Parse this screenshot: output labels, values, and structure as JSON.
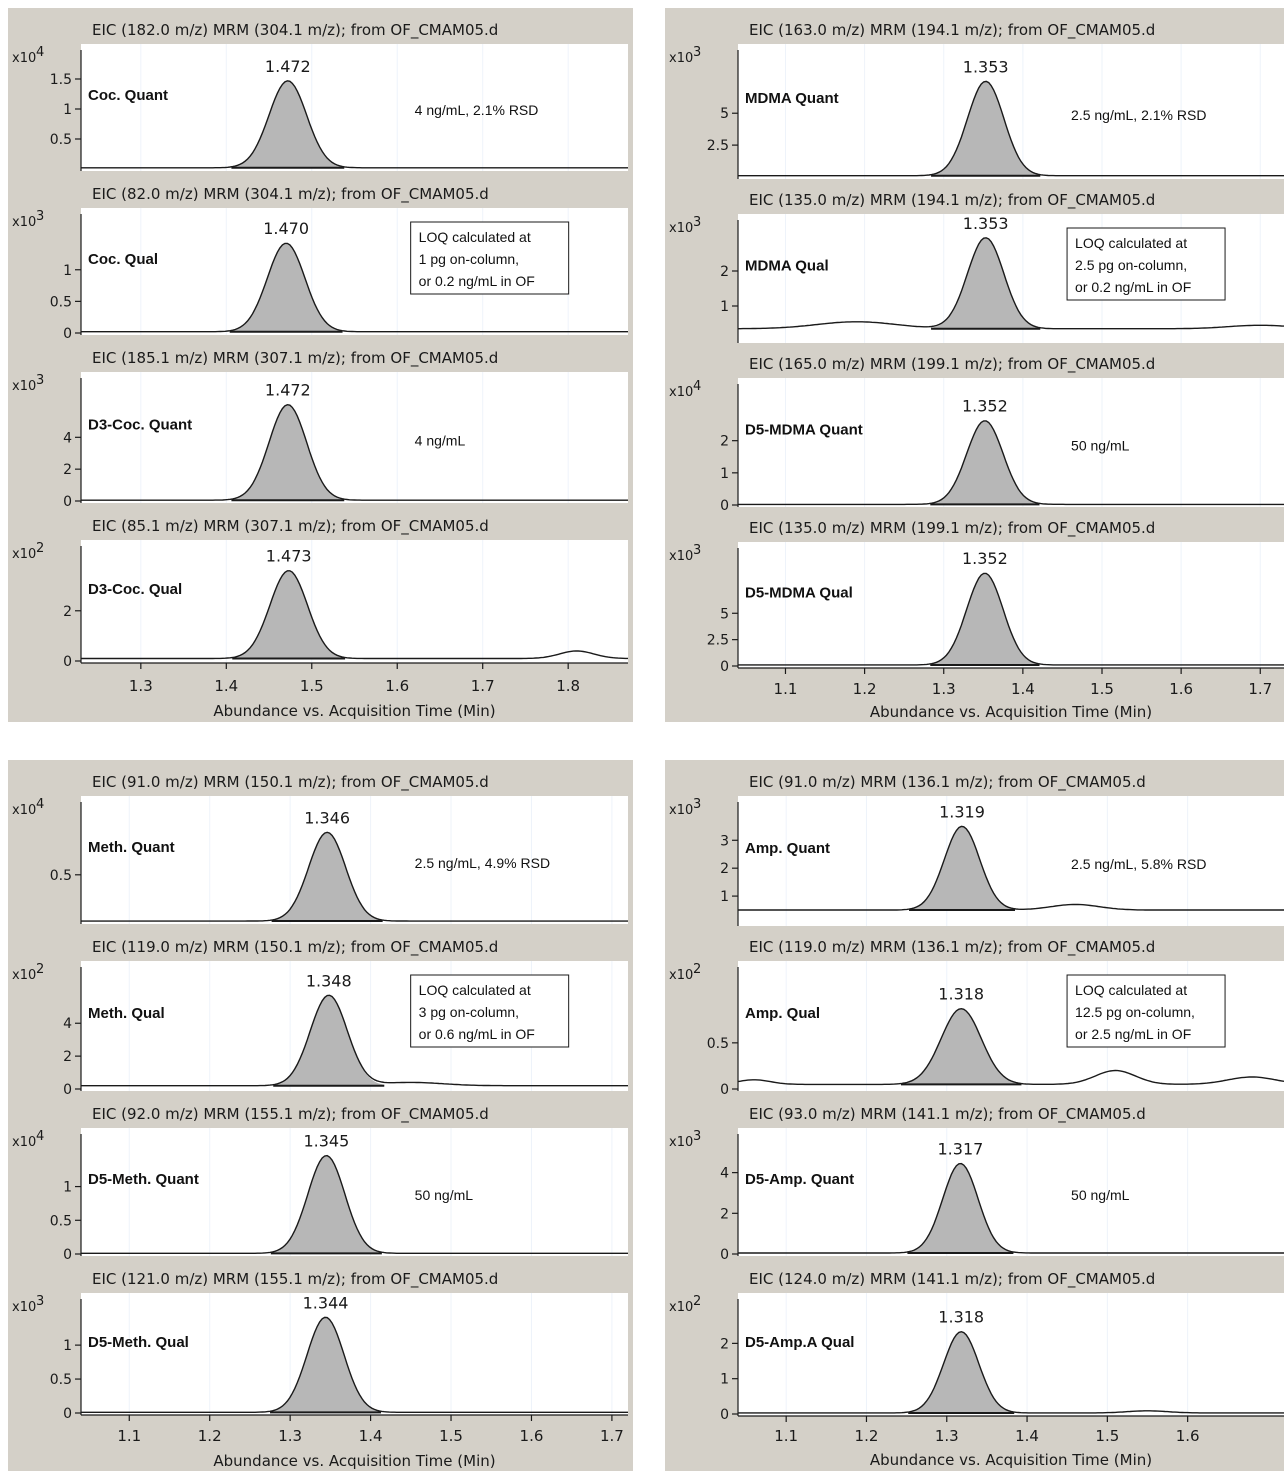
{
  "chart_data": [
    {
      "type": "line",
      "xlabel": "Abundance vs. Acquisition Time (Min)",
      "xlim": [
        1.23,
        1.87
      ],
      "xticks": [
        "1.3",
        "1.4",
        "1.5",
        "1.6",
        "1.7",
        "1.8"
      ],
      "strips": [
        {
          "title": "EIC (182.0 m/z) MRM (304.1 m/z); from OF_CMAM05.d",
          "multiplier": "x10",
          "exponent": "4",
          "yticks": [
            "1.5",
            "1",
            "0.5"
          ],
          "ytick_values": [
            1.5,
            1,
            0.5
          ],
          "ymax": 1.95,
          "peak_rt": 1.472,
          "apex_label": "1.472",
          "peak_height": 1.45,
          "peak_width": 0.022,
          "baseline": 0.02,
          "compound": "Coc. Quant",
          "annotation": [
            "4 ng/mL, 2.1% RSD"
          ],
          "boxed": false,
          "extras": []
        },
        {
          "title": "EIC (82.0 m/z) MRM (304.1 m/z); from OF_CMAM05.d",
          "multiplier": "x10",
          "exponent": "3",
          "yticks": [
            "1",
            "0.5",
            "0"
          ],
          "ytick_values": [
            1,
            0.5,
            0
          ],
          "ymax": 1.85,
          "peak_rt": 1.47,
          "apex_label": "1.470",
          "peak_height": 1.4,
          "peak_width": 0.022,
          "baseline": 0.02,
          "compound": "Coc. Qual",
          "annotation": [
            "LOQ calculated at",
            "1 pg on-column,",
            "or 0.2 ng/mL in OF"
          ],
          "boxed": true,
          "extras": []
        },
        {
          "title": "EIC (185.1 m/z) MRM (307.1 m/z); from OF_CMAM05.d",
          "multiplier": "x10",
          "exponent": "3",
          "yticks": [
            "4",
            "2",
            "0"
          ],
          "ytick_values": [
            4,
            2,
            0
          ],
          "ymax": 7.6,
          "peak_rt": 1.472,
          "apex_label": "1.472",
          "peak_height": 6.0,
          "peak_width": 0.022,
          "baseline": 0.05,
          "compound": "D3-Coc. Quant",
          "annotation": [
            "4 ng/mL"
          ],
          "boxed": false,
          "extras": []
        },
        {
          "title": "EIC (85.1 m/z) MRM (307.1 m/z); from OF_CMAM05.d",
          "multiplier": "x10",
          "exponent": "2",
          "yticks": [
            "2",
            "0"
          ],
          "ytick_values": [
            2,
            0
          ],
          "ymax": 4.5,
          "peak_rt": 1.473,
          "apex_label": "1.473",
          "peak_height": 3.5,
          "peak_width": 0.022,
          "baseline": 0.1,
          "compound": "D3-Coc. Qual",
          "annotation": [],
          "boxed": false,
          "extras": [
            {
              "rt": 1.81,
              "height": 0.3,
              "width": 0.02
            }
          ]
        }
      ]
    },
    {
      "type": "line",
      "xlabel": "Abundance vs. Acquisition Time (Min)",
      "xlim": [
        1.04,
        1.73
      ],
      "xticks": [
        "1.1",
        "1.2",
        "1.3",
        "1.4",
        "1.5",
        "1.6",
        "1.7"
      ],
      "strips": [
        {
          "title": "EIC (163.0 m/z) MRM (194.1 m/z); from OF_CMAM05.d",
          "multiplier": "x10",
          "exponent": "3",
          "yticks": [
            "5",
            "2.5"
          ],
          "ytick_values": [
            5,
            2.5
          ],
          "ymax": 9.8,
          "peak_rt": 1.353,
          "apex_label": "1.353",
          "peak_height": 7.4,
          "peak_width": 0.023,
          "baseline": 0.1,
          "compound": "MDMA Quant",
          "annotation": [
            "2.5 ng/mL, 2.1% RSD"
          ],
          "boxed": false,
          "extras": []
        },
        {
          "title": "EIC (135.0 m/z) MRM (194.1 m/z); from OF_CMAM05.d",
          "multiplier": "x10",
          "exponent": "3",
          "yticks": [
            "2",
            "1"
          ],
          "ytick_values": [
            2,
            1
          ],
          "ymax": 3.4,
          "peak_rt": 1.353,
          "apex_label": "1.353",
          "peak_height": 2.6,
          "peak_width": 0.023,
          "baseline": 0.35,
          "compound": "MDMA Qual",
          "annotation": [
            "LOQ calculated at",
            "2.5 pg on-column,",
            "or 0.2 ng/mL in OF"
          ],
          "boxed": true,
          "extras": [
            {
              "rt": 1.19,
              "height": 0.2,
              "width": 0.05
            },
            {
              "rt": 1.7,
              "height": 0.1,
              "width": 0.04
            }
          ]
        },
        {
          "title": "EIC (165.0 m/z) MRM (199.1 m/z); from OF_CMAM05.d",
          "multiplier": "x10",
          "exponent": "4",
          "yticks": [
            "2",
            "1",
            "0"
          ],
          "ytick_values": [
            2,
            1,
            0
          ],
          "ymax": 3.7,
          "peak_rt": 1.352,
          "apex_label": "1.352",
          "peak_height": 2.6,
          "peak_width": 0.023,
          "baseline": 0.02,
          "compound": "D5-MDMA Quant",
          "annotation": [
            "50 ng/mL"
          ],
          "boxed": false,
          "extras": []
        },
        {
          "title": "EIC (135.0 m/z) MRM (199.1 m/z); from OF_CMAM05.d",
          "multiplier": "x10",
          "exponent": "3",
          "yticks": [
            "5",
            "2.5",
            "0"
          ],
          "ytick_values": [
            5,
            2.5,
            0
          ],
          "ymax": 11.0,
          "peak_rt": 1.352,
          "apex_label": "1.352",
          "peak_height": 8.7,
          "peak_width": 0.023,
          "baseline": 0.1,
          "compound": "D5-MDMA Qual",
          "annotation": [],
          "boxed": false,
          "extras": []
        }
      ]
    },
    {
      "type": "line",
      "xlabel": "Abundance vs. Acquisition Time (Min)",
      "xlim": [
        1.04,
        1.72
      ],
      "xticks": [
        "1.1",
        "1.2",
        "1.3",
        "1.4",
        "1.5",
        "1.6",
        "1.7"
      ],
      "strips": [
        {
          "title": "EIC (91.0 m/z) MRM (150.1 m/z); from OF_CMAM05.d",
          "multiplier": "x10",
          "exponent": "4",
          "yticks": [
            "0.5"
          ],
          "ytick_values": [
            0.5
          ],
          "ymax": 1.25,
          "peak_rt": 1.346,
          "apex_label": "1.346",
          "peak_height": 0.94,
          "peak_width": 0.023,
          "baseline": 0.01,
          "compound": "Meth. Quant",
          "annotation": [
            "2.5 ng/mL, 4.9% RSD"
          ],
          "boxed": false,
          "extras": []
        },
        {
          "title": "EIC (119.0 m/z) MRM (150.1 m/z); from OF_CMAM05.d",
          "multiplier": "x10",
          "exponent": "2",
          "yticks": [
            "4",
            "2",
            "0"
          ],
          "ytick_values": [
            4,
            2,
            0
          ],
          "ymax": 7.3,
          "peak_rt": 1.348,
          "apex_label": "1.348",
          "peak_height": 5.5,
          "peak_width": 0.023,
          "baseline": 0.2,
          "compound": "Meth. Qual",
          "annotation": [
            "LOQ calculated at",
            "3 pg on-column,",
            "or 0.6 ng/mL in OF"
          ],
          "boxed": true,
          "extras": [
            {
              "rt": 1.45,
              "height": 0.2,
              "width": 0.04
            }
          ]
        },
        {
          "title": "EIC (92.0 m/z) MRM (155.1 m/z); from OF_CMAM05.d",
          "multiplier": "x10",
          "exponent": "4",
          "yticks": [
            "1",
            "0.5",
            "0"
          ],
          "ytick_values": [
            1,
            0.5,
            0
          ],
          "ymax": 1.75,
          "peak_rt": 1.345,
          "apex_label": "1.345",
          "peak_height": 1.45,
          "peak_width": 0.023,
          "baseline": 0.01,
          "compound": "D5-Meth. Quant",
          "annotation": [
            "50 ng/mL"
          ],
          "boxed": false,
          "extras": []
        },
        {
          "title": "EIC (121.0 m/z) MRM (155.1 m/z); from OF_CMAM05.d",
          "multiplier": "x10",
          "exponent": "3",
          "yticks": [
            "1",
            "0.5",
            "0"
          ],
          "ytick_values": [
            1,
            0.5,
            0
          ],
          "ymax": 1.65,
          "peak_rt": 1.344,
          "apex_label": "1.344",
          "peak_height": 1.4,
          "peak_width": 0.023,
          "baseline": 0.01,
          "compound": "D5-Meth. Qual",
          "annotation": [],
          "boxed": false,
          "extras": []
        }
      ]
    },
    {
      "type": "line",
      "xlabel": "Abundance vs. Acquisition Time (Min)",
      "xlim": [
        1.04,
        1.72
      ],
      "xticks": [
        "1.1",
        "1.2",
        "1.3",
        "1.4",
        "1.5",
        "1.6"
      ],
      "strips": [
        {
          "title": "EIC (91.0 m/z) MRM (136.1 m/z); from OF_CMAM05.d",
          "multiplier": "x10",
          "exponent": "3",
          "yticks": [
            "3",
            "2",
            "1"
          ],
          "ytick_values": [
            3,
            2,
            1
          ],
          "ymax": 4.3,
          "peak_rt": 1.319,
          "apex_label": "1.319",
          "peak_height": 3.0,
          "peak_width": 0.022,
          "baseline": 0.5,
          "compound": "Amp. Quant",
          "annotation": [
            "2.5 ng/mL, 5.8% RSD"
          ],
          "boxed": false,
          "extras": [
            {
              "rt": 1.46,
              "height": 0.2,
              "width": 0.03
            }
          ]
        },
        {
          "title": "EIC (119.0 m/z) MRM (136.1 m/z); from OF_CMAM05.d",
          "multiplier": "x10",
          "exponent": "2",
          "yticks": [
            "0.5",
            "0"
          ],
          "ytick_values": [
            0.5,
            0
          ],
          "ymax": 1.3,
          "peak_rt": 1.318,
          "apex_label": "1.318",
          "peak_height": 0.82,
          "peak_width": 0.025,
          "baseline": 0.05,
          "compound": "Amp. Qual",
          "annotation": [
            "LOQ calculated at",
            "12.5 pg on-column,",
            "or 2.5 ng/mL in OF"
          ],
          "boxed": true,
          "extras": [
            {
              "rt": 1.06,
              "height": 0.05,
              "width": 0.02
            },
            {
              "rt": 1.51,
              "height": 0.15,
              "width": 0.025
            },
            {
              "rt": 1.68,
              "height": 0.08,
              "width": 0.03
            }
          ]
        },
        {
          "title": "EIC (93.0 m/z) MRM (141.1 m/z); from OF_CMAM05.d",
          "multiplier": "x10",
          "exponent": "3",
          "yticks": [
            "4",
            "2",
            "0"
          ],
          "ytick_values": [
            4,
            2,
            0
          ],
          "ymax": 5.8,
          "peak_rt": 1.317,
          "apex_label": "1.317",
          "peak_height": 4.4,
          "peak_width": 0.022,
          "baseline": 0.05,
          "compound": "D5-Amp. Quant",
          "annotation": [
            "50 ng/mL"
          ],
          "boxed": false,
          "extras": []
        },
        {
          "title": "EIC (124.0 m/z) MRM (141.1 m/z); from OF_CMAM05.d",
          "multiplier": "x10",
          "exponent": "2",
          "yticks": [
            "2",
            "1",
            "0"
          ],
          "ytick_values": [
            2,
            1,
            0
          ],
          "ymax": 3.2,
          "peak_rt": 1.318,
          "apex_label": "1.318",
          "peak_height": 2.3,
          "peak_width": 0.022,
          "baseline": 0.03,
          "compound": "D5-Amp.A Qual",
          "annotation": [],
          "boxed": false,
          "extras": [
            {
              "rt": 1.55,
              "height": 0.06,
              "width": 0.025
            }
          ]
        }
      ]
    }
  ]
}
